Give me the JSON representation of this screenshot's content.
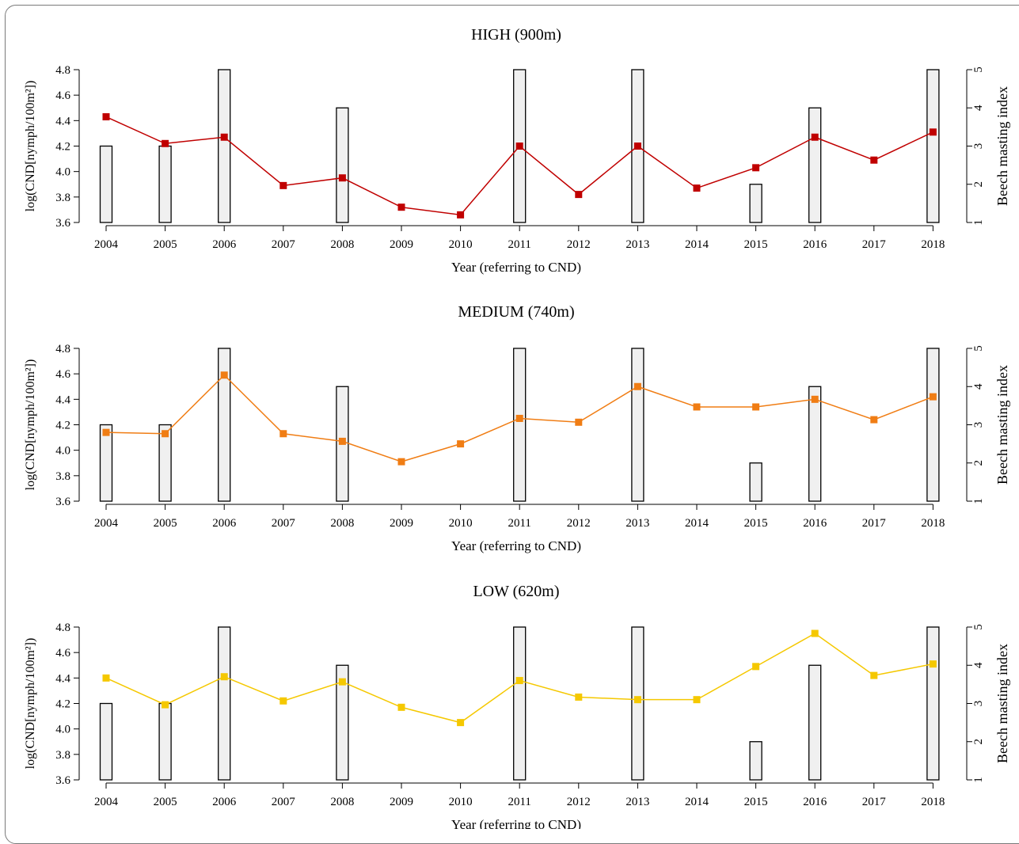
{
  "chart_data": [
    {
      "type": "bar+line",
      "title": "HIGH (900m)",
      "xlabel": "Year (referring to CND)",
      "ylabel_left": "log(CND[nymph/100m²])",
      "ylabel_right": "Beech masting index",
      "ylim_left": [
        3.6,
        4.8
      ],
      "ylim_right": [
        1,
        5
      ],
      "yticks_left": [
        "3.6",
        "3.8",
        "4.0",
        "4.2",
        "4.4",
        "4.6",
        "4.8"
      ],
      "yticks_right": [
        "1",
        "2",
        "3",
        "4",
        "5"
      ],
      "categories": [
        "2004",
        "2005",
        "2006",
        "2007",
        "2008",
        "2009",
        "2010",
        "2011",
        "2012",
        "2013",
        "2014",
        "2015",
        "2016",
        "2017",
        "2018"
      ],
      "bars": {
        "name": "Beech masting index",
        "axis": "right",
        "color": "#f0f0f0",
        "values": [
          3,
          3,
          5,
          1,
          4,
          1,
          1,
          5,
          1,
          5,
          1,
          2,
          4,
          1,
          5
        ]
      },
      "line": {
        "name": "log(CND)",
        "axis": "left",
        "color": "#c00000",
        "values": [
          4.43,
          4.22,
          4.27,
          3.89,
          3.95,
          3.72,
          3.66,
          4.2,
          3.82,
          4.2,
          3.87,
          4.03,
          4.27,
          4.09,
          4.31
        ]
      }
    },
    {
      "type": "bar+line",
      "title": "MEDIUM (740m)",
      "xlabel": "Year (referring to CND)",
      "ylabel_left": "log(CND[nymph/100m²])",
      "ylabel_right": "Beech masting index",
      "ylim_left": [
        3.6,
        4.8
      ],
      "ylim_right": [
        1,
        5
      ],
      "yticks_left": [
        "3.6",
        "3.8",
        "4.0",
        "4.2",
        "4.4",
        "4.6",
        "4.8"
      ],
      "yticks_right": [
        "1",
        "2",
        "3",
        "4",
        "5"
      ],
      "categories": [
        "2004",
        "2005",
        "2006",
        "2007",
        "2008",
        "2009",
        "2010",
        "2011",
        "2012",
        "2013",
        "2014",
        "2015",
        "2016",
        "2017",
        "2018"
      ],
      "bars": {
        "name": "Beech masting index",
        "axis": "right",
        "color": "#f0f0f0",
        "values": [
          3,
          3,
          5,
          1,
          4,
          1,
          1,
          5,
          1,
          5,
          1,
          2,
          4,
          1,
          5
        ]
      },
      "line": {
        "name": "log(CND)",
        "axis": "left",
        "color": "#f07d14",
        "values": [
          4.14,
          4.13,
          4.59,
          4.13,
          4.07,
          3.91,
          4.05,
          4.25,
          4.22,
          4.5,
          4.34,
          4.34,
          4.4,
          4.24,
          4.42
        ]
      }
    },
    {
      "type": "bar+line",
      "title": "LOW (620m)",
      "xlabel": "Year (referring to CND)",
      "ylabel_left": "log(CND[nymph/100m²])",
      "ylabel_right": "Beech masting index",
      "ylim_left": [
        3.6,
        4.8
      ],
      "ylim_right": [
        1,
        5
      ],
      "yticks_left": [
        "3.6",
        "3.8",
        "4.0",
        "4.2",
        "4.4",
        "4.6",
        "4.8"
      ],
      "yticks_right": [
        "1",
        "2",
        "3",
        "4",
        "5"
      ],
      "categories": [
        "2004",
        "2005",
        "2006",
        "2007",
        "2008",
        "2009",
        "2010",
        "2011",
        "2012",
        "2013",
        "2014",
        "2015",
        "2016",
        "2017",
        "2018"
      ],
      "bars": {
        "name": "Beech masting index",
        "axis": "right",
        "color": "#f0f0f0",
        "values": [
          3,
          3,
          5,
          1,
          4,
          1,
          1,
          5,
          1,
          5,
          1,
          2,
          4,
          1,
          5
        ]
      },
      "line": {
        "name": "log(CND)",
        "axis": "left",
        "color": "#f5c800",
        "values": [
          4.4,
          4.19,
          4.41,
          4.22,
          4.37,
          4.17,
          4.05,
          4.38,
          4.25,
          4.23,
          4.23,
          4.49,
          4.75,
          4.42,
          4.51
        ]
      }
    }
  ]
}
